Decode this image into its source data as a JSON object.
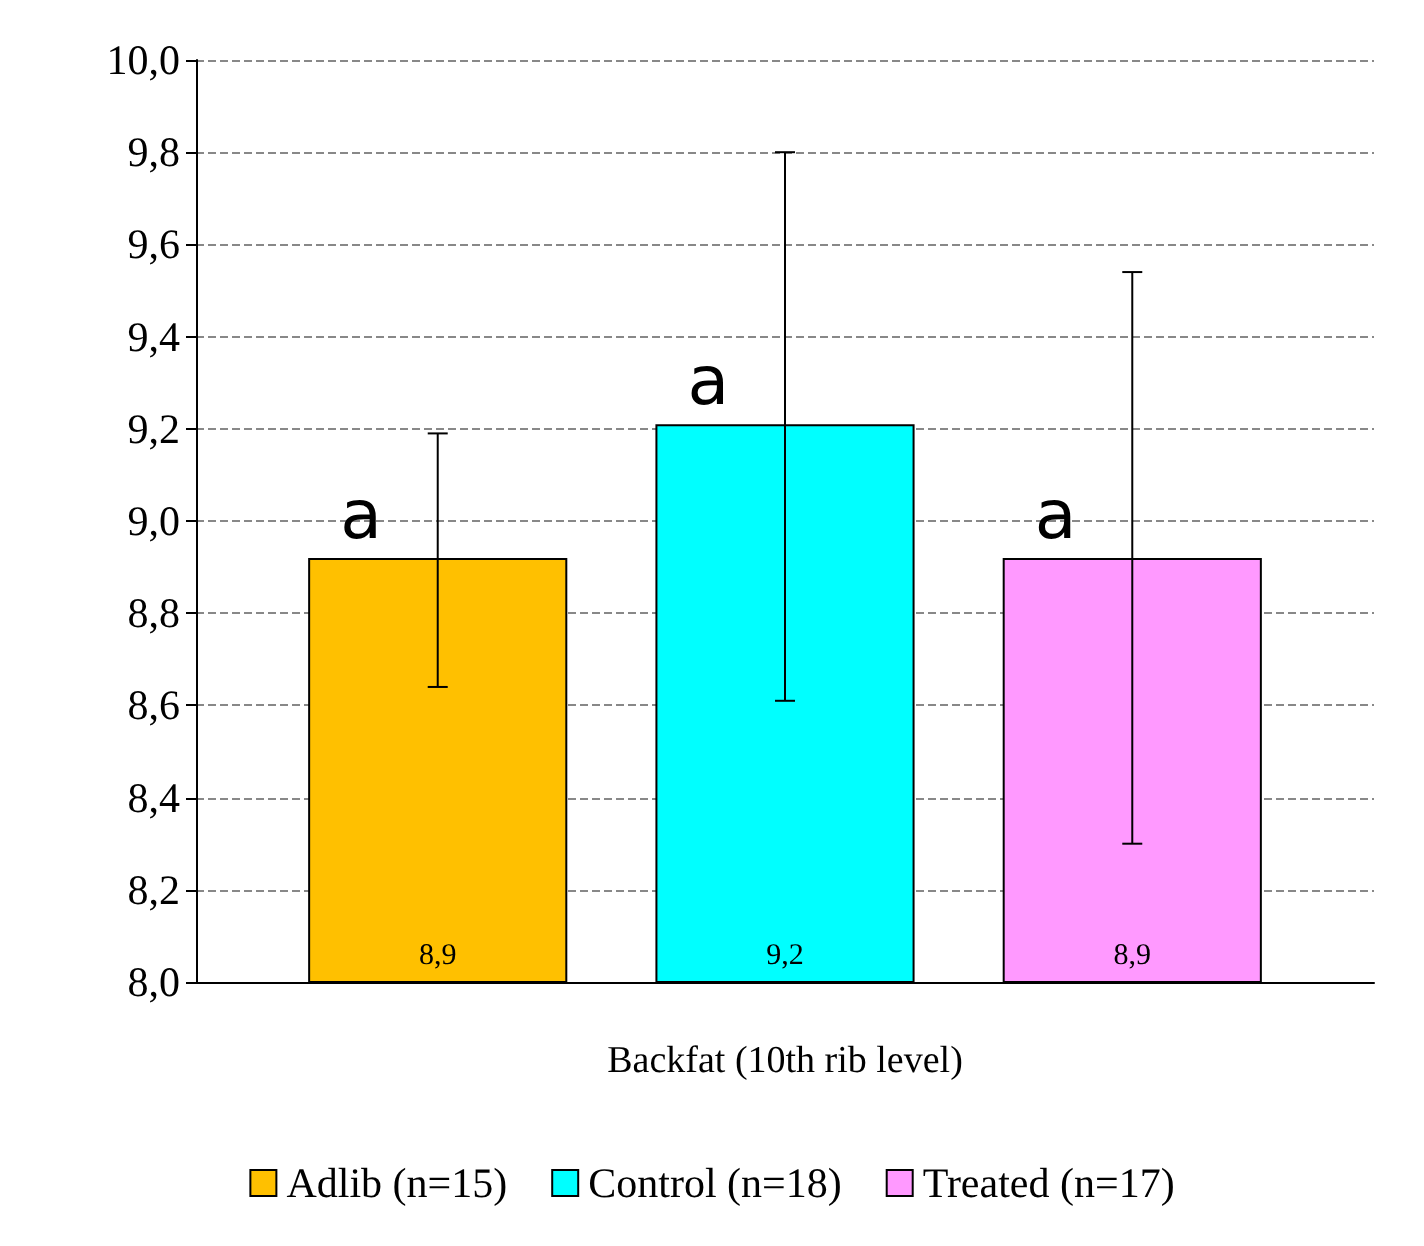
{
  "chart_data": {
    "type": "bar",
    "categories": [
      "Backfat (10th rib level)"
    ],
    "series": [
      {
        "name": "Adlib (n=15)",
        "color": "#ffc000",
        "values": [
          8.92
        ],
        "errors": [
          [
            8.64,
            9.19
          ]
        ],
        "value_labels": [
          "8,9"
        ]
      },
      {
        "name": "Control (n=18)",
        "color": "#00ffff",
        "values": [
          9.21
        ],
        "errors": [
          [
            8.61,
            9.8
          ]
        ],
        "value_labels": [
          "9,2"
        ]
      },
      {
        "name": "Treated (n=17)",
        "color": "#ff99ff",
        "values": [
          8.92
        ],
        "errors": [
          [
            8.3,
            9.54
          ]
        ],
        "value_labels": [
          "8,9"
        ]
      }
    ],
    "annotations": [
      "a",
      "a",
      "a"
    ],
    "ylim": [
      8,
      10
    ],
    "yticks": [
      {
        "value": 8,
        "label": "8,0"
      },
      {
        "value": 8.2,
        "label": "8,2"
      },
      {
        "value": 8.4,
        "label": "8,4"
      },
      {
        "value": 8.6,
        "label": "8,6"
      },
      {
        "value": 8.8,
        "label": "8,8"
      },
      {
        "value": 9,
        "label": "9,0"
      },
      {
        "value": 9.2,
        "label": "9,2"
      },
      {
        "value": 9.4,
        "label": "9,4"
      },
      {
        "value": 9.6,
        "label": "9,6"
      },
      {
        "value": 9.8,
        "label": "9,8"
      },
      {
        "value": 10,
        "label": "10,0"
      }
    ],
    "grid": "y",
    "legend": "bottom"
  }
}
